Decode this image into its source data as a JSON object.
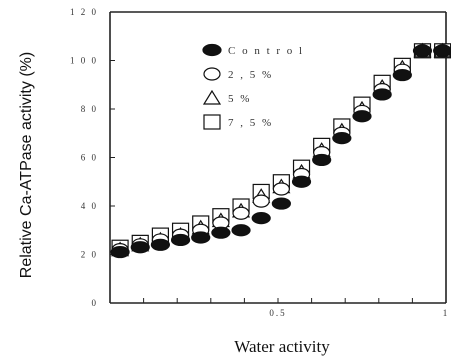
{
  "chart_data": {
    "type": "scatter",
    "xlabel": "Water activity",
    "ylabel": "Relative Ca-ATPase activity (%)",
    "xlim": [
      0,
      1
    ],
    "ylim": [
      0,
      120
    ],
    "yticks": [
      "0",
      "2 0",
      "4 0",
      "6 0",
      "8 0",
      "1 0 0",
      "1 2 0"
    ],
    "yticks_values": [
      0,
      20,
      40,
      60,
      80,
      100,
      120
    ],
    "xtick_labels": [
      {
        "x": 0.5,
        "label": "0.5"
      },
      {
        "x": 1.0,
        "label": "1"
      }
    ],
    "legend_position": "upper-left",
    "series": [
      {
        "name": "C o n t r o l",
        "marker": "filled-ellipse",
        "x": [
          0.03,
          0.09,
          0.15,
          0.21,
          0.27,
          0.33,
          0.39,
          0.45,
          0.51,
          0.57,
          0.63,
          0.69,
          0.75,
          0.81,
          0.87,
          0.93,
          0.99
        ],
        "y": [
          21,
          23,
          24,
          26,
          27,
          29,
          30,
          35,
          41,
          50,
          59,
          68,
          77,
          86,
          94,
          104,
          104
        ]
      },
      {
        "name": "2 , 5   %",
        "marker": "open-ellipse",
        "x": [
          0.03,
          0.09,
          0.15,
          0.21,
          0.27,
          0.33,
          0.39,
          0.45,
          0.51,
          0.57,
          0.63,
          0.69,
          0.75,
          0.81,
          0.87,
          0.93,
          0.99
        ],
        "y": [
          22,
          24,
          26,
          28,
          30,
          33,
          37,
          42,
          47,
          53,
          62,
          70,
          79,
          88,
          96,
          104,
          104
        ]
      },
      {
        "name": "5   %",
        "marker": "open-triangle",
        "x": [
          0.03,
          0.09,
          0.15,
          0.21,
          0.27,
          0.33,
          0.39,
          0.45,
          0.51,
          0.57,
          0.63,
          0.69,
          0.75,
          0.81,
          0.87,
          0.93,
          0.99
        ],
        "y": [
          22,
          24,
          26,
          28,
          31,
          34,
          38,
          44,
          48,
          54,
          63,
          71,
          80,
          89,
          97,
          104,
          104
        ]
      },
      {
        "name": "7 , 5   %",
        "marker": "open-square",
        "x": [
          0.03,
          0.09,
          0.15,
          0.21,
          0.27,
          0.33,
          0.39,
          0.45,
          0.51,
          0.57,
          0.63,
          0.69,
          0.75,
          0.81,
          0.87,
          0.93,
          0.99
        ],
        "y": [
          23,
          25,
          28,
          30,
          33,
          36,
          40,
          46,
          50,
          56,
          65,
          73,
          82,
          91,
          98,
          104,
          104
        ]
      }
    ]
  }
}
